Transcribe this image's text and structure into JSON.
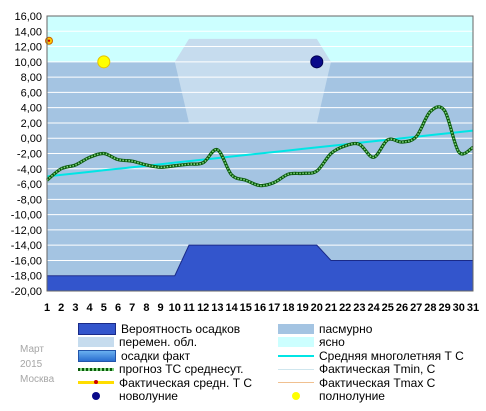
{
  "chart_data": {
    "type": "line",
    "xlim": [
      1,
      31
    ],
    "ylim": [
      -20,
      16
    ],
    "x": [
      1,
      2,
      3,
      4,
      5,
      6,
      7,
      8,
      9,
      10,
      11,
      12,
      13,
      14,
      15,
      16,
      17,
      18,
      19,
      20,
      21,
      22,
      23,
      24,
      25,
      26,
      27,
      28,
      29,
      30,
      31
    ],
    "x_tick_labels": [
      "1",
      "2",
      "3",
      "4",
      "5",
      "6",
      "7",
      "8",
      "9",
      "10",
      "11",
      "12",
      "13",
      "14",
      "15",
      "16",
      "17",
      "18",
      "19",
      "20",
      "21",
      "22",
      "23",
      "24",
      "25",
      "26",
      "27",
      "28",
      "29",
      "30",
      "31"
    ],
    "y_tick_labels": [
      "16,00",
      "14,00",
      "12,00",
      "10,00",
      "8,00",
      "6,00",
      "4,00",
      "2,00",
      "0,00",
      "-2,00",
      "-4,00",
      "-6,00",
      "-8,00",
      "-10,00",
      "-12,00",
      "-14,00",
      "-16,00",
      "-18,00",
      "-20,00"
    ],
    "precipitation_probability_band": [
      {
        "x": 1,
        "top": -18.0
      },
      {
        "x": 10,
        "top": -18.0
      },
      {
        "x": 11,
        "top": -14.0
      },
      {
        "x": 20,
        "top": -14.0
      },
      {
        "x": 21,
        "top": -16.0
      },
      {
        "x": 31,
        "top": -16.0
      }
    ],
    "cloudiness": {
      "overcast": [
        {
          "x0": 1,
          "x1": 10,
          "top": 10
        },
        {
          "x0": 10,
          "x1": 11,
          "top": 2
        },
        {
          "x0": 11,
          "x1": 20,
          "top": 2
        },
        {
          "x0": 20,
          "x1": 21,
          "top": 2
        },
        {
          "x0": 21,
          "x1": 31,
          "top": 10
        }
      ],
      "variable_top": [
        {
          "x": 10,
          "y": 10
        },
        {
          "x": 11,
          "y": 13
        },
        {
          "x": 20,
          "y": 13
        },
        {
          "x": 21,
          "y": 10
        }
      ],
      "clear_top": 16
    },
    "series": [
      {
        "name": "прогноз ТС среднесут.",
        "style": "dotted-green",
        "values": [
          -5.5,
          -4.0,
          -3.5,
          -2.5,
          -2.0,
          -2.8,
          -3.0,
          -3.5,
          -3.8,
          -3.6,
          -3.4,
          -3.2,
          -1.5,
          -4.8,
          -5.5,
          -6.2,
          -5.8,
          -4.7,
          -4.6,
          -4.3,
          -2.0,
          -1.0,
          -0.8,
          -2.5,
          -0.2,
          -0.5,
          0.2,
          3.5,
          3.6,
          -1.8,
          -1.2
        ]
      },
      {
        "name": "Средняя многолетняя Т С",
        "style": "solid-cyan",
        "values": [
          -5.0,
          -4.8,
          -4.6,
          -4.4,
          -4.2,
          -4.0,
          -3.8,
          -3.6,
          -3.4,
          -3.2,
          -3.0,
          -2.8,
          -2.6,
          -2.4,
          -2.2,
          -2.0,
          -1.8,
          -1.6,
          -1.4,
          -1.2,
          -1.0,
          -0.8,
          -0.6,
          -0.4,
          -0.2,
          0.0,
          0.2,
          0.4,
          0.6,
          0.8,
          1.0
        ]
      }
    ],
    "actual_mean_points": [
      {
        "x": 1,
        "y": 12.5
      }
    ],
    "full_moon": {
      "x": 5,
      "y": 10
    },
    "new_moon": {
      "x": 20,
      "y": 10
    },
    "colors": {
      "clear_bg": "#ccffff",
      "variable_bg": "#c6dcee",
      "overcast_bg": "#a4c4e2",
      "precip_fill": "#3355cc",
      "forecast_line": "#008000",
      "norm_line": "#00e5e5",
      "gridline": "#ffffff"
    }
  },
  "legend": {
    "items": [
      {
        "label": "Вероятность осадков",
        "swatch": "precip-prob",
        "icon": "dark-blue-box"
      },
      {
        "label": "пасмурно",
        "swatch": "overcast",
        "icon": "steel-blue-box"
      },
      {
        "label": "перемен. обл.",
        "swatch": "variable",
        "icon": "light-steel-box"
      },
      {
        "label": "ясно",
        "swatch": "clear",
        "icon": "pale-cyan-box"
      },
      {
        "label": "осадки факт",
        "swatch": "precip-fact",
        "icon": "blue-gradient-box"
      },
      {
        "label": "Средняя многолетняя Т С",
        "swatch": "norm",
        "icon": "cyan-line"
      },
      {
        "label": "прогноз ТС среднесут.",
        "swatch": "forecast",
        "icon": "green-dotted-line"
      },
      {
        "label": "Фактическая Tmin, С",
        "swatch": "tmin",
        "icon": "light-line"
      },
      {
        "label": "Фактическая средн. Т С",
        "swatch": "tmean",
        "icon": "yellow-line-with-red-dot"
      },
      {
        "label": "Фактическая Tmax С",
        "swatch": "tmax",
        "icon": "orange-line"
      },
      {
        "label": "новолуние",
        "swatch": "new-moon",
        "icon": "dark-blue-circle"
      },
      {
        "label": "полнолуние",
        "swatch": "full-moon",
        "icon": "yellow-circle"
      }
    ]
  },
  "caption": {
    "month": "Март",
    "year": "2015",
    "city": "Москва"
  }
}
